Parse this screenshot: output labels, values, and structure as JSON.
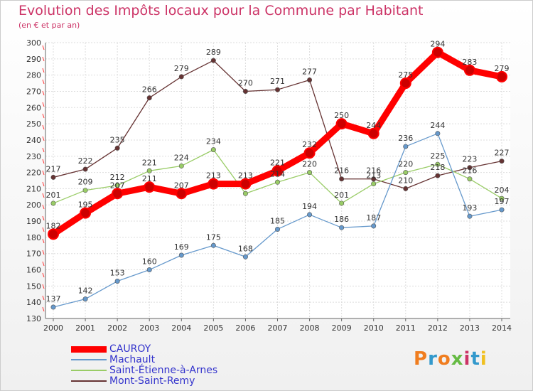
{
  "chart_data": {
    "type": "line",
    "title": "Evolution des Impôts locaux pour la Commune par Habitant",
    "subtitle": "(en € et par an)",
    "x": [
      "2000",
      "2001",
      "2002",
      "2003",
      "2004",
      "2005",
      "2006",
      "2007",
      "2008",
      "2009",
      "2010",
      "2011",
      "2012",
      "2013",
      "2014"
    ],
    "ylim": [
      130,
      300
    ],
    "yticks": [
      130,
      140,
      150,
      160,
      170,
      180,
      190,
      200,
      210,
      220,
      230,
      240,
      250,
      260,
      270,
      280,
      290,
      300
    ],
    "grid": true,
    "legend_position": "bottom-left",
    "series": [
      {
        "name": "CAUROY",
        "color": "#ff0000",
        "values": [
          182,
          195,
          207,
          211,
          207,
          213,
          213,
          221,
          232,
          250,
          244,
          275,
          294,
          283,
          279
        ],
        "labels": [
          "182",
          "195",
          "207",
          "211",
          "207",
          "213",
          "213",
          "221",
          "232",
          "250",
          "244",
          "275",
          "294",
          "283",
          "279"
        ]
      },
      {
        "name": "Machault",
        "color": "#6699cc",
        "values": [
          137,
          142,
          153,
          160,
          169,
          175,
          168,
          185,
          194,
          186,
          187,
          236,
          244,
          193,
          197
        ],
        "labels": [
          "137",
          "142",
          "153",
          "160",
          "169",
          "175",
          "168",
          "185",
          "194",
          "186",
          "187",
          "236",
          "244",
          "193",
          "197"
        ]
      },
      {
        "name": "Saint-Étienne-à-Arnes",
        "color": "#99cc66",
        "values": [
          201,
          209,
          212,
          221,
          224,
          234,
          207,
          214,
          220,
          201,
          213,
          220,
          225,
          216,
          204
        ],
        "labels": [
          "201",
          "209",
          "212",
          "221",
          "224",
          "234",
          "",
          "214",
          "220",
          "201",
          "213",
          "220",
          "225",
          "216",
          "204"
        ]
      },
      {
        "name": "Mont-Saint-Remy",
        "color": "#663333",
        "values": [
          217,
          222,
          235,
          266,
          279,
          289,
          270,
          271,
          277,
          216,
          216,
          210,
          218,
          223,
          227
        ],
        "labels": [
          "217",
          "222",
          "235",
          "266",
          "279",
          "289",
          "270",
          "271",
          "277",
          "216",
          "216",
          "210",
          "218",
          "223",
          "227"
        ]
      }
    ]
  },
  "logo": {
    "letters": [
      "P",
      "r",
      "o",
      "x",
      "i",
      "t",
      "i"
    ],
    "colors": [
      "#f07d1f",
      "#3399cc",
      "#f07d1f",
      "#66bb44",
      "#cc3366",
      "#3399cc",
      "#f0c020"
    ]
  }
}
